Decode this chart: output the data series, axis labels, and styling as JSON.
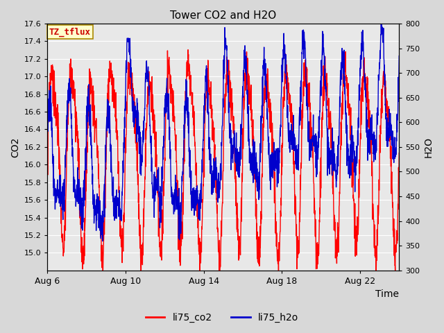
{
  "title": "Tower CO2 and H2O",
  "xlabel": "Time",
  "ylabel_left": "CO2",
  "ylabel_right": "H2O",
  "ylim_left": [
    14.8,
    17.6
  ],
  "ylim_right": [
    300,
    800
  ],
  "yticks_left": [
    15.0,
    15.2,
    15.4,
    15.6,
    15.8,
    16.0,
    16.2,
    16.4,
    16.6,
    16.8,
    17.0,
    17.2,
    17.4,
    17.6
  ],
  "yticks_right": [
    300,
    350,
    400,
    450,
    500,
    550,
    600,
    650,
    700,
    750,
    800
  ],
  "xtick_labels": [
    "Aug 6",
    "Aug 10",
    "Aug 14",
    "Aug 18",
    "Aug 22"
  ],
  "xtick_positions": [
    0,
    4,
    8,
    12,
    16
  ],
  "color_co2": "#ff0000",
  "color_h2o": "#0000cc",
  "line_width": 1.0,
  "annotation_text": "TZ_tflux",
  "annotation_color": "#cc0000",
  "annotation_bg": "#ffffcc",
  "annotation_border": "#aa8800",
  "bg_color": "#d8d8d8",
  "plot_bg": "#e8e8e8",
  "legend_labels": [
    "li75_co2",
    "li75_h2o"
  ],
  "n_days": 18,
  "total_points": 1800
}
